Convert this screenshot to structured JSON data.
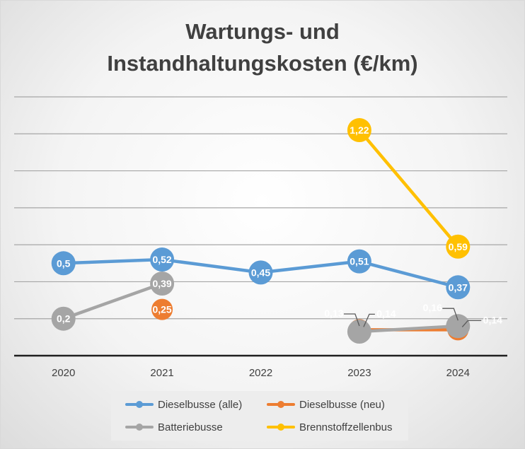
{
  "chart_data": {
    "type": "line",
    "title": [
      "Wartungs- und",
      "Instandhaltungskosten (€/km)"
    ],
    "categories": [
      "2020",
      "2021",
      "2022",
      "2023",
      "2024"
    ],
    "ylim": [
      0,
      1.4
    ],
    "grid": true,
    "legend_position": "bottom",
    "series": [
      {
        "name": "Dieselbusse (alle)",
        "color": "#5b9bd5",
        "values": [
          0.5,
          0.52,
          0.45,
          0.51,
          0.37
        ],
        "labels": [
          "0,5",
          "0,52",
          "0,45",
          "0,51",
          "0,37"
        ],
        "label_placement": "on-point"
      },
      {
        "name": "Dieselbusse (neu)",
        "color": "#ed7d31",
        "values": [
          null,
          0.25,
          null,
          0.14,
          0.14
        ],
        "labels": [
          "",
          "0,25",
          "",
          "0,14",
          "0,14"
        ],
        "label_placement": [
          "",
          "on-point",
          "",
          "above-right",
          "right"
        ]
      },
      {
        "name": "Batteriebusse",
        "color": "#a5a5a5",
        "values": [
          0.2,
          0.39,
          null,
          0.13,
          0.16
        ],
        "labels": [
          "0,2",
          "0,39",
          "",
          "0,13",
          "0,16"
        ],
        "label_placement": [
          "on-point",
          "on-point",
          "",
          "above-left",
          "above-left"
        ]
      },
      {
        "name": "Brennstoffzellenbus",
        "color": "#ffc000",
        "values": [
          null,
          null,
          null,
          1.22,
          0.59
        ],
        "labels": [
          "",
          "",
          "",
          "1,22",
          "0,59"
        ],
        "label_placement": "on-point"
      }
    ]
  }
}
